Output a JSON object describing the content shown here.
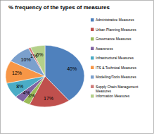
{
  "chart_data": {
    "type": "pie",
    "title": "% frequency of the types of measures",
    "categories": [
      "Administrative Measures",
      "Urban Planning Measures",
      "Governance Measures",
      "Awareness",
      "Infrastructural Measures",
      "ITS & Technical Measures",
      "Modelling/Tools Measures",
      "Supply Chain Management Measures",
      "Information Measures"
    ],
    "values": [
      40,
      17,
      3,
      4,
      8,
      12,
      10,
      1,
      6
    ],
    "value_labels": [
      "40%",
      "17%",
      "3%",
      "4%",
      "8%",
      "12%",
      "10%",
      "1%",
      "6%"
    ],
    "colors": [
      "#4f81bd",
      "#c0504d",
      "#9bbb59",
      "#8064a2",
      "#4bacc6",
      "#f79646",
      "#7ba0cd",
      "#d07d7b",
      "#b4d08a"
    ],
    "data_labels": true,
    "legend": "right"
  }
}
